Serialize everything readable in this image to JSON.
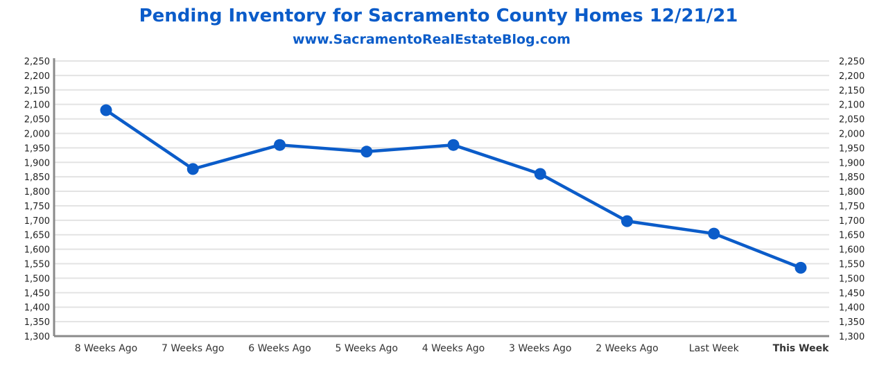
{
  "chart_data": {
    "type": "line",
    "title": "Pending Inventory for Sacramento County Homes 12/21/21",
    "subtitle": "www.SacramentoRealEstateBlog.com",
    "xlabel": "",
    "ylabel": "",
    "categories": [
      "8 Weeks Ago",
      "7 Weeks Ago",
      "6 Weeks Ago",
      "5 Weeks Ago",
      "4 Weeks Ago",
      "3 Weeks Ago",
      "2 Weeks Ago",
      "Last Week",
      "This Week"
    ],
    "highlight_category": "This Week",
    "series": [
      {
        "name": "Pending Inventory",
        "values": [
          2080,
          1877,
          1960,
          1937,
          1960,
          1860,
          1697,
          1654,
          1536
        ]
      }
    ],
    "ylim": [
      1300,
      2250
    ],
    "ytick_step": 50,
    "yticks": [
      "2,250",
      "2,200",
      "2,150",
      "2,100",
      "2,050",
      "2,000",
      "1,950",
      "1,900",
      "1,850",
      "1,800",
      "1,750",
      "1,700",
      "1,650",
      "1,600",
      "1,550",
      "1,500",
      "1,450",
      "1,400",
      "1,350",
      "1,300"
    ],
    "grid": true,
    "legend": "none",
    "colors": {
      "line": "#0b5cc9",
      "grid": "#e3e3e3",
      "axis": "#8a8a8a"
    }
  }
}
